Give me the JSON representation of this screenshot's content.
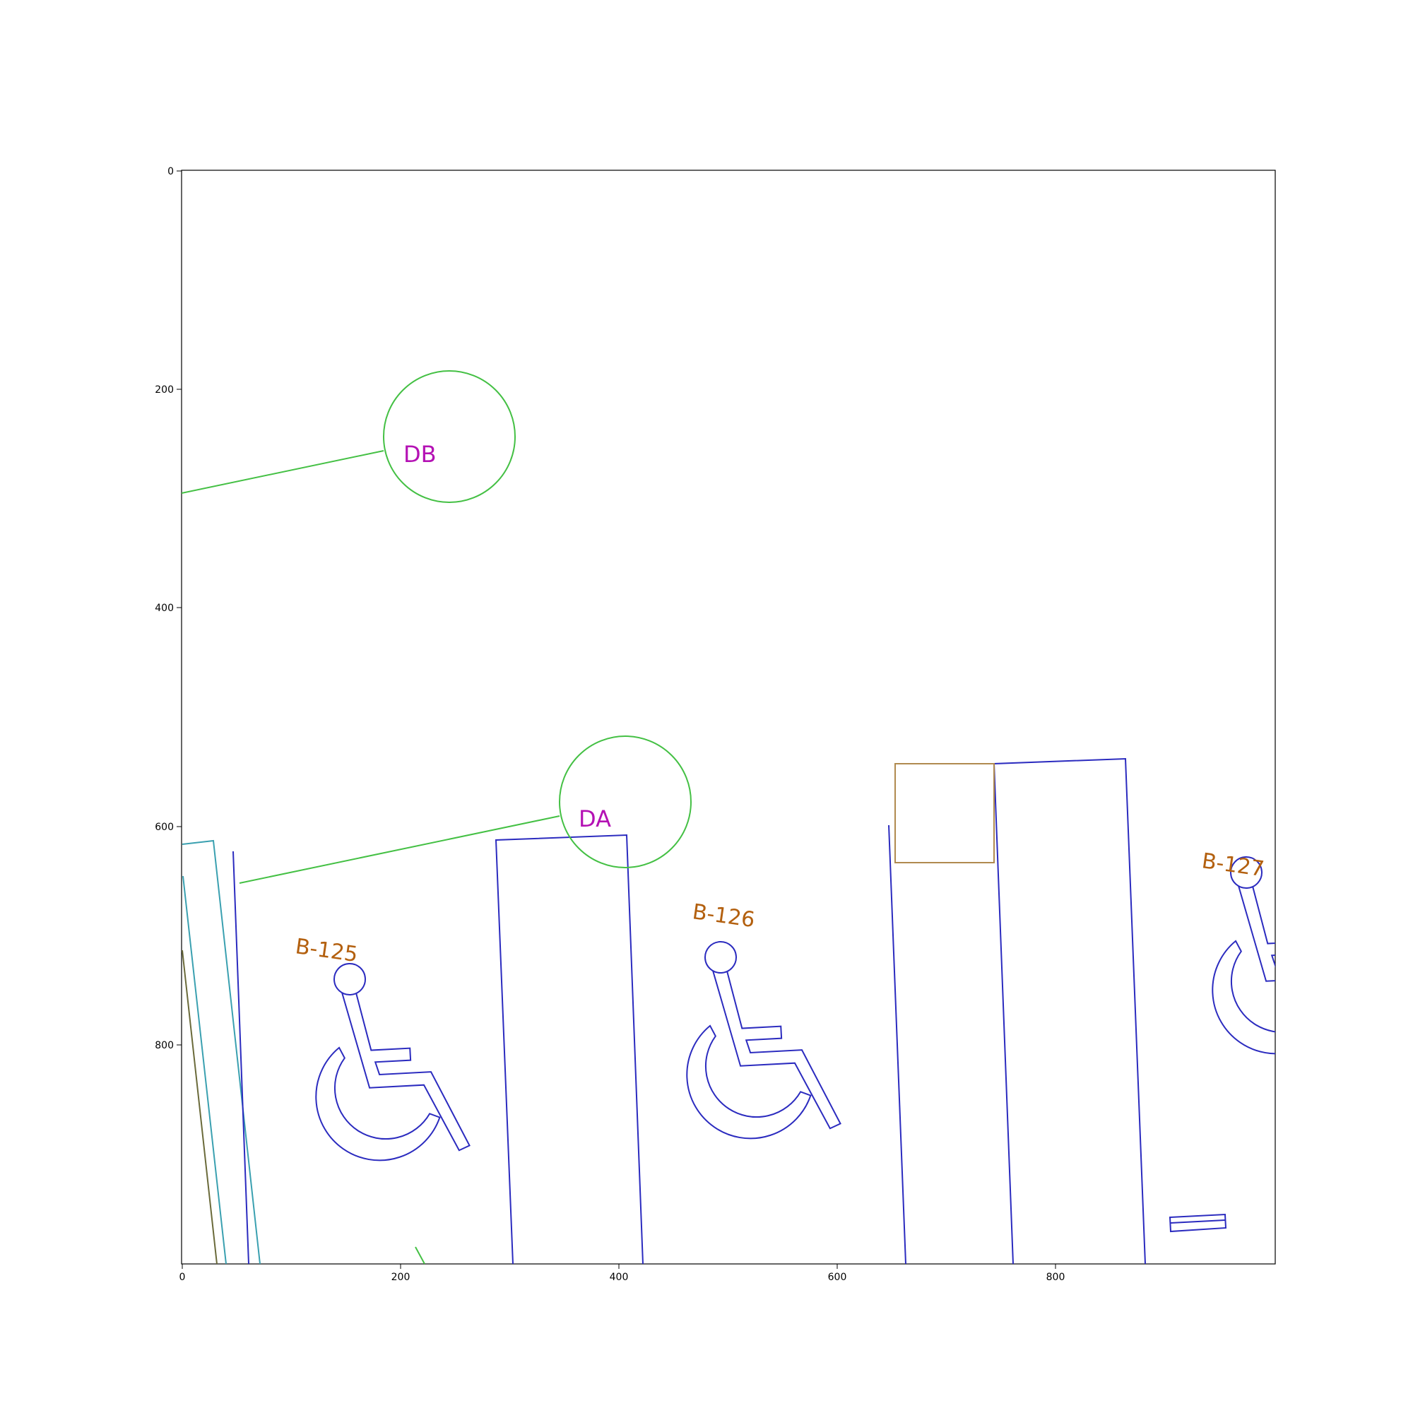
{
  "colors": {
    "frame": "#000000",
    "background": "#ffffff",
    "parking_lines": "#2b2bbf",
    "isa_symbol": "#2b2bbf",
    "bubble_outline": "#44c044",
    "bubble_text": "#b412b4",
    "space_label": "#b3600f",
    "box_outline": "#b08a4f",
    "teal_line": "#3aa0b0",
    "olive_line": "#6a6a3a"
  },
  "axes": {
    "x_ticks": [
      "0",
      "200",
      "400",
      "600",
      "800"
    ],
    "y_ticks": [
      "0",
      "200",
      "400",
      "600",
      "800"
    ]
  },
  "callouts": [
    {
      "label": "DB"
    },
    {
      "label": "DA"
    }
  ],
  "parking_spaces": [
    {
      "label": "B-125",
      "icon": "wheelchair-accessible-icon"
    },
    {
      "label": "B-126",
      "icon": "wheelchair-accessible-icon"
    },
    {
      "label": "B-127",
      "icon": "wheelchair-accessible-icon"
    }
  ]
}
